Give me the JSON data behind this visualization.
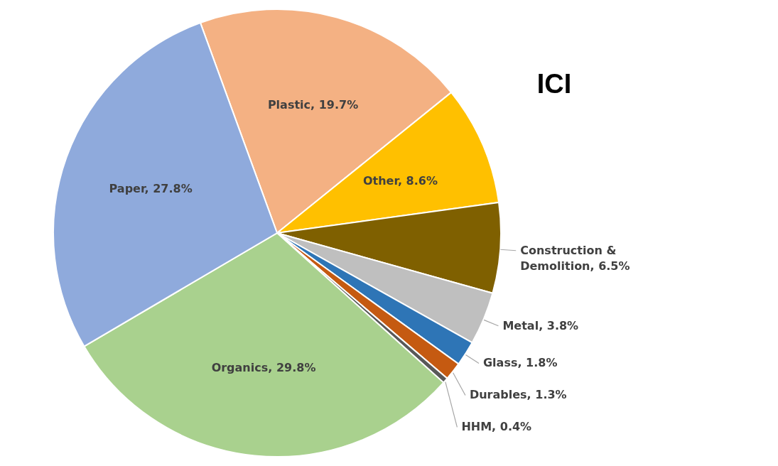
{
  "chart_data": {
    "type": "pie",
    "title": "ICI",
    "categories": [
      "Plastic",
      "Other",
      "Construction & Demolition",
      "Metal",
      "Glass",
      "Durables",
      "HHM",
      "Organics",
      "Paper"
    ],
    "values": [
      19.7,
      8.6,
      6.5,
      3.8,
      1.8,
      1.3,
      0.4,
      29.8,
      27.8
    ],
    "colors": [
      "#f4b183",
      "#ffc000",
      "#7f6000",
      "#bfbfbf",
      "#2e75b6",
      "#c55a11",
      "#595959",
      "#a9d18e",
      "#8faadc"
    ],
    "value_labels": [
      "19.7%",
      "8.6%",
      "6.5%",
      "3.8%",
      "1.8%",
      "1.3%",
      "0.4%",
      "29.8%",
      "27.8%"
    ]
  }
}
